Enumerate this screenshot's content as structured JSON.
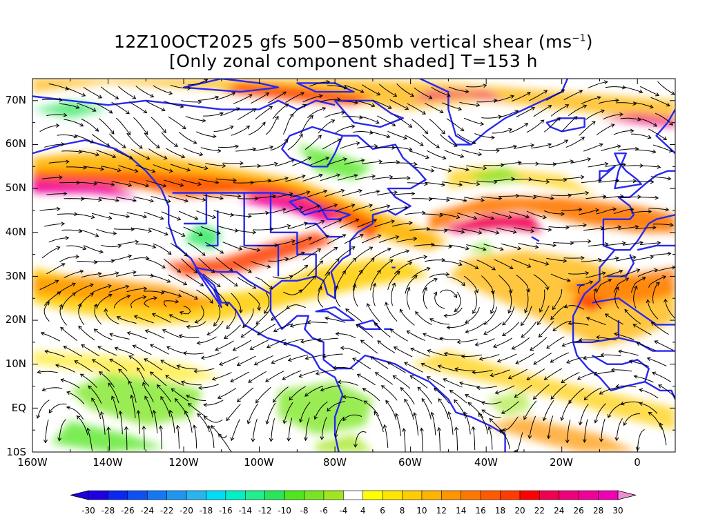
{
  "title": {
    "line1_prefix": "12Z10OCT2025 gfs 500−850mb vertical shear (ms",
    "line1_sup": "−1",
    "line1_suffix": ")",
    "line2": "[Only zonal component shaded] T=153 h"
  },
  "axes": {
    "lat_labels": [
      "70N",
      "60N",
      "50N",
      "40N",
      "30N",
      "20N",
      "10N",
      "EQ",
      "10S"
    ],
    "lon_labels": [
      "160W",
      "140W",
      "120W",
      "100W",
      "80W",
      "60W",
      "40W",
      "20W",
      "0"
    ],
    "lon_range": [
      -160,
      10
    ],
    "lat_range": [
      -10,
      75
    ]
  },
  "colorbar": {
    "labels": [
      "-30",
      "-28",
      "-26",
      "-24",
      "-22",
      "-20",
      "-18",
      "-16",
      "-14",
      "-12",
      "-10",
      "-8",
      "-6",
      "-4",
      "4",
      "6",
      "8",
      "10",
      "12",
      "14",
      "16",
      "18",
      "20",
      "22",
      "24",
      "26",
      "28",
      "30"
    ],
    "colors": [
      "#1e00e0",
      "#0a28f0",
      "#0f50f5",
      "#1478f5",
      "#1e96f0",
      "#28b4f0",
      "#00dcf5",
      "#00f0c8",
      "#1ef090",
      "#28e65a",
      "#50e61e",
      "#78e61e",
      "#a0e61e",
      "#ffffff",
      "#ffff00",
      "#ffe600",
      "#ffcd00",
      "#ffb400",
      "#ff9600",
      "#ff7800",
      "#ff5a00",
      "#ff3c00",
      "#ff0000",
      "#f00050",
      "#f00078",
      "#f0009b",
      "#f000b4"
    ],
    "left_arrow_color": "#1e00e0",
    "right_arrow_color": "#f08cd2"
  },
  "colors": {
    "coastline": "#2828f0",
    "streamline": "#000000",
    "frame": "#000000"
  }
}
